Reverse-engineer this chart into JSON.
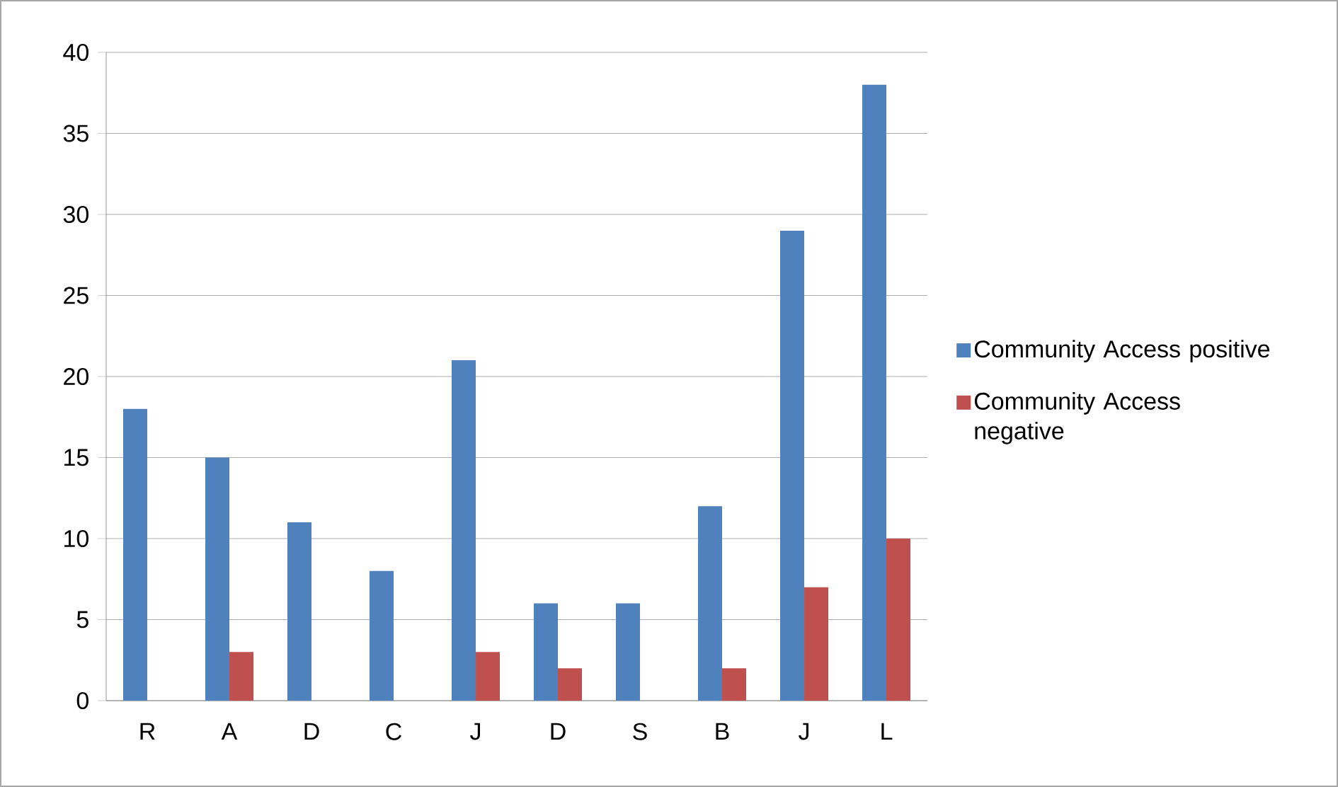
{
  "chart_data": {
    "type": "bar",
    "categories": [
      "R",
      "A",
      "D",
      "C",
      "J",
      "D",
      "S",
      "B",
      "J",
      "L"
    ],
    "series": [
      {
        "name": "Community Access positive",
        "color": "#4f81bd",
        "values": [
          18,
          15,
          11,
          8,
          21,
          6,
          6,
          12,
          29,
          38
        ]
      },
      {
        "name": "Community Access negative",
        "color": "#c0504d",
        "values": [
          0,
          3,
          0,
          0,
          3,
          2,
          0,
          2,
          7,
          10
        ]
      }
    ],
    "ylim": [
      0,
      40
    ],
    "yticks": [
      0,
      5,
      10,
      15,
      20,
      25,
      30,
      35,
      40
    ],
    "grid": "y",
    "legend": "right"
  }
}
